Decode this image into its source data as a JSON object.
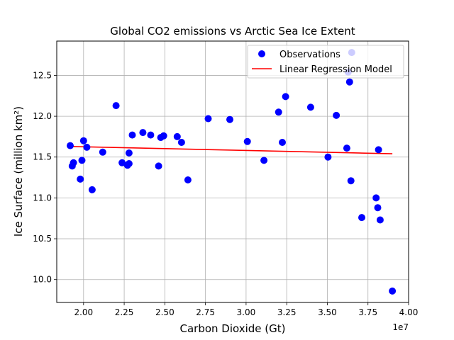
{
  "chart_data": {
    "type": "scatter",
    "title": "Global CO2 emissions vs Arctic Sea Ice Extent",
    "xlabel": "Carbon Dioxide (Gt)",
    "ylabel": "Ice Surface (million km²)",
    "x_offset_label": "1e7",
    "xlim": [
      18350000,
      40000000
    ],
    "ylim": [
      9.72,
      12.92
    ],
    "grid": true,
    "legend_position": "top-right",
    "x_ticks": [
      {
        "value": 20000000,
        "label": "2.00"
      },
      {
        "value": 22500000,
        "label": "2.25"
      },
      {
        "value": 25000000,
        "label": "2.50"
      },
      {
        "value": 27500000,
        "label": "2.75"
      },
      {
        "value": 30000000,
        "label": "3.00"
      },
      {
        "value": 32500000,
        "label": "3.25"
      },
      {
        "value": 35000000,
        "label": "3.50"
      },
      {
        "value": 37500000,
        "label": "3.75"
      },
      {
        "value": 40000000,
        "label": "4.00"
      }
    ],
    "y_ticks": [
      {
        "value": 10.0,
        "label": "10.0"
      },
      {
        "value": 10.5,
        "label": "10.5"
      },
      {
        "value": 11.0,
        "label": "11.0"
      },
      {
        "value": 11.5,
        "label": "11.5"
      },
      {
        "value": 12.0,
        "label": "12.0"
      },
      {
        "value": 12.5,
        "label": "12.5"
      }
    ],
    "series": [
      {
        "name": "Observations",
        "kind": "scatter",
        "color": "#0000ff",
        "points": [
          [
            19180000,
            11.64
          ],
          [
            19300000,
            11.39
          ],
          [
            19380000,
            11.43
          ],
          [
            19800000,
            11.23
          ],
          [
            19900000,
            11.46
          ],
          [
            20000000,
            11.7
          ],
          [
            20200000,
            11.62
          ],
          [
            20530000,
            11.1
          ],
          [
            21180000,
            11.56
          ],
          [
            22000000,
            12.13
          ],
          [
            22370000,
            11.43
          ],
          [
            22700000,
            11.4
          ],
          [
            22800000,
            11.42
          ],
          [
            22800000,
            11.55
          ],
          [
            23000000,
            11.77
          ],
          [
            23650000,
            11.8
          ],
          [
            24130000,
            11.77
          ],
          [
            24620000,
            11.39
          ],
          [
            24750000,
            11.74
          ],
          [
            24930000,
            11.76
          ],
          [
            25760000,
            11.75
          ],
          [
            26030000,
            11.68
          ],
          [
            26420000,
            11.22
          ],
          [
            27670000,
            11.97
          ],
          [
            29000000,
            11.96
          ],
          [
            30080000,
            11.69
          ],
          [
            31100000,
            11.46
          ],
          [
            32000000,
            12.05
          ],
          [
            32230000,
            11.68
          ],
          [
            32430000,
            12.24
          ],
          [
            33970000,
            12.11
          ],
          [
            35040000,
            11.5
          ],
          [
            35550000,
            12.01
          ],
          [
            36200000,
            11.61
          ],
          [
            36280000,
            12.54
          ],
          [
            36370000,
            12.42
          ],
          [
            36450000,
            11.21
          ],
          [
            36500000,
            12.78
          ],
          [
            37120000,
            10.76
          ],
          [
            38000000,
            11.0
          ],
          [
            38100000,
            10.88
          ],
          [
            38150000,
            11.59
          ],
          [
            38250000,
            10.73
          ],
          [
            39000000,
            9.86
          ]
        ]
      },
      {
        "name": "Linear Regression Model",
        "kind": "line",
        "color": "#ff0000",
        "points": [
          [
            19180000,
            11.63
          ],
          [
            39000000,
            11.54
          ]
        ]
      }
    ]
  }
}
